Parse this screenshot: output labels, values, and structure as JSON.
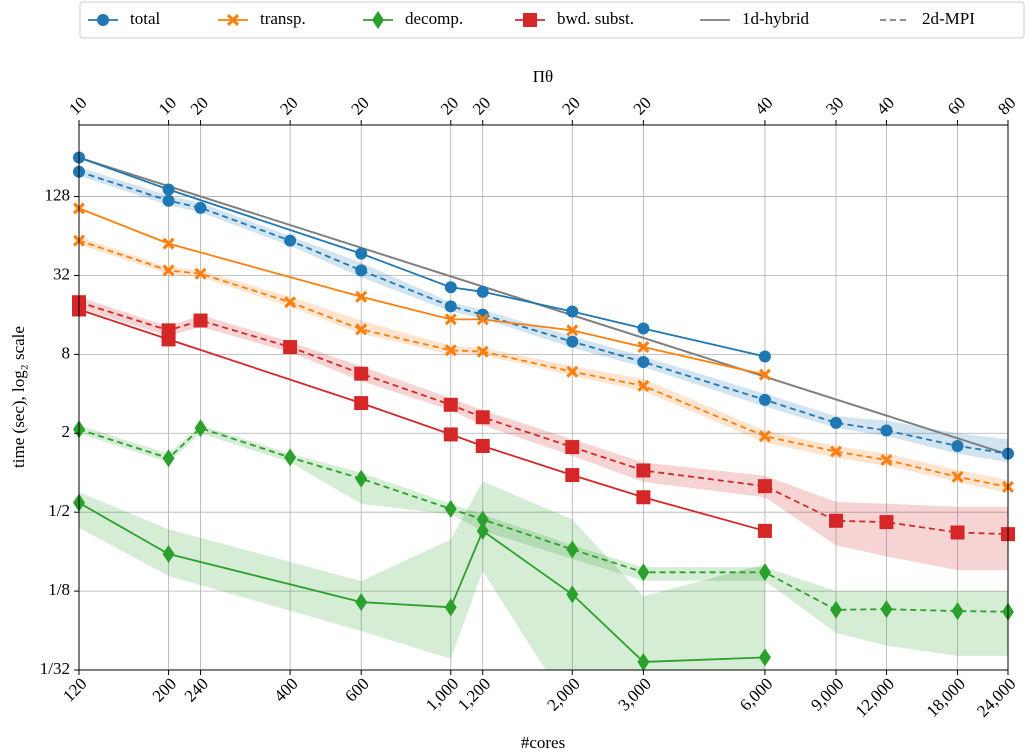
{
  "chart_data": {
    "type": "line",
    "x_label": "#cores",
    "y_label": "time (sec), log₂ scale",
    "top_label": "Πθ",
    "log_x": true,
    "log_y": true,
    "grid": true,
    "xlim": [
      120,
      24000
    ],
    "ylim": [
      0.03125,
      450
    ],
    "xticks": [
      120,
      200,
      240,
      400,
      600,
      {
        "value": 1000,
        "label": "1,000"
      },
      {
        "value": 1200,
        "label": "1,200"
      },
      {
        "value": 2000,
        "label": "2,000"
      },
      {
        "value": 3000,
        "label": "3,000"
      },
      {
        "value": 6000,
        "label": "6,000"
      },
      {
        "value": 9000,
        "label": "9,000"
      },
      {
        "value": 12000,
        "label": "12,000"
      },
      {
        "value": 18000,
        "label": "18,000"
      },
      {
        "value": 24000,
        "label": "24,000"
      }
    ],
    "top_ticks": [
      {
        "value": 120,
        "label": "10"
      },
      {
        "value": 200,
        "label": "10"
      },
      {
        "value": 240,
        "label": "20"
      },
      {
        "value": 400,
        "label": "20"
      },
      {
        "value": 600,
        "label": "20"
      },
      {
        "value": 1000,
        "label": "20"
      },
      {
        "value": 1200,
        "label": "20"
      },
      {
        "value": 2000,
        "label": "20"
      },
      {
        "value": 3000,
        "label": "20"
      },
      {
        "value": 6000,
        "label": "40"
      },
      {
        "value": 9000,
        "label": "30"
      },
      {
        "value": 12000,
        "label": "40"
      },
      {
        "value": 18000,
        "label": "60"
      },
      {
        "value": 24000,
        "label": "80"
      }
    ],
    "yticks": [
      {
        "value": 0.03125,
        "label": "1/32"
      },
      {
        "value": 0.125,
        "label": "1/8"
      },
      {
        "value": 0.5,
        "label": "1/2"
      },
      2,
      8,
      32,
      128
    ],
    "line_styles": [
      {
        "name": "1d-hybrid",
        "color": "#7f7f7f",
        "dashed": false
      },
      {
        "name": "2d-MPI",
        "color": "#7f7f7f",
        "dashed": true
      }
    ],
    "reference": {
      "color": "#7f7f7f",
      "x": [
        120,
        24000
      ],
      "values": [
        254,
        1.38
      ]
    },
    "series": [
      {
        "name": "total",
        "color": "#1f77b4",
        "marker": "circle",
        "hybrid": {
          "x": [
            120,
            200,
            600,
            1000,
            1200,
            2000,
            3000,
            6000
          ],
          "values": [
            254,
            145,
            47,
            26,
            24,
            17,
            12.6,
            7.7
          ]
        },
        "mpi": {
          "x": [
            120,
            200,
            240,
            400,
            600,
            1000,
            1200,
            2000,
            3000,
            6000,
            9000,
            12000,
            18000,
            24000
          ],
          "values": [
            198,
            119,
            105,
            59,
            35,
            18.6,
            16.1,
            10,
            7.0,
            3.6,
            2.4,
            2.1,
            1.6,
            1.4
          ],
          "lower": [
            185,
            110,
            97,
            54,
            31,
            17,
            15,
            9,
            6.4,
            3.2,
            2.2,
            1.9,
            1.4,
            1.2
          ],
          "upper": [
            215,
            130,
            115,
            64,
            40,
            20,
            17.5,
            11,
            7.7,
            4.0,
            2.7,
            2.5,
            2.0,
            1.8
          ]
        }
      },
      {
        "name": "transp.",
        "color": "#ff7f0e",
        "marker": "x",
        "hybrid": {
          "x": [
            120,
            200,
            600,
            1000,
            1200,
            2000,
            3000,
            6000
          ],
          "values": [
            104,
            56,
            22,
            14.8,
            14.8,
            12.2,
            9.1,
            5.6
          ]
        },
        "mpi": {
          "x": [
            120,
            200,
            240,
            400,
            600,
            1000,
            1200,
            2000,
            3000,
            6000,
            9000,
            12000,
            18000,
            24000
          ],
          "values": [
            59,
            35,
            33,
            20,
            12.4,
            8.6,
            8.4,
            5.9,
            4.6,
            1.9,
            1.45,
            1.25,
            0.93,
            0.78
          ],
          "lower": [
            55,
            33,
            31,
            18.5,
            11.5,
            8,
            7.9,
            5.5,
            4.2,
            1.7,
            1.3,
            1.13,
            0.85,
            0.7
          ],
          "upper": [
            63,
            37,
            35,
            22,
            14.5,
            9.3,
            9,
            6.5,
            5.2,
            2.1,
            1.6,
            1.4,
            1.05,
            0.88
          ]
        }
      },
      {
        "name": "decomp.",
        "color": "#2ca02c",
        "marker": "diamond",
        "hybrid": {
          "x": [
            120,
            200,
            600,
            1000,
            1200,
            2000,
            3000,
            6000
          ],
          "values": [
            0.59,
            0.24,
            0.103,
            0.094,
            0.36,
            0.118,
            0.036,
            0.039
          ],
          "lower": [
            0.38,
            0.163,
            0.062,
            0.038,
            0.178,
            0.015,
            0.015,
            0.015
          ],
          "upper": [
            0.71,
            0.37,
            0.149,
            0.31,
            0.86,
            0.44,
            0.114,
            0.2
          ]
        },
        "mpi": {
          "x": [
            120,
            200,
            240,
            400,
            600,
            1000,
            1200,
            2000,
            3000,
            6000,
            9000,
            12000,
            18000,
            24000
          ],
          "values": [
            2.14,
            1.29,
            2.19,
            1.31,
            0.9,
            0.53,
            0.44,
            0.26,
            0.174,
            0.174,
            0.09,
            0.091,
            0.088,
            0.087
          ],
          "lower": [
            2.0,
            1.2,
            2.0,
            1.2,
            0.58,
            0.48,
            0.36,
            0.22,
            0.15,
            0.15,
            0.06,
            0.048,
            0.04,
            0.04
          ],
          "upper": [
            2.3,
            1.4,
            2.3,
            1.4,
            1.0,
            0.58,
            0.48,
            0.28,
            0.19,
            0.19,
            0.125,
            0.125,
            0.125,
            0.125
          ]
        }
      },
      {
        "name": "bwd. subst.",
        "color": "#d62728",
        "marker": "square",
        "hybrid": {
          "x": [
            120,
            200,
            600,
            1000,
            1200,
            2000,
            3000,
            6000
          ],
          "values": [
            17.6,
            10.4,
            3.4,
            1.96,
            1.6,
            0.96,
            0.65,
            0.36
          ]
        },
        "mpi": {
          "x": [
            120,
            200,
            240,
            400,
            600,
            1000,
            1200,
            2000,
            3000,
            6000,
            9000,
            12000,
            18000,
            24000
          ],
          "values": [
            20,
            12.2,
            14.5,
            9.1,
            5.7,
            3.3,
            2.65,
            1.57,
            1.04,
            0.79,
            0.43,
            0.42,
            0.35,
            0.34
          ],
          "lower": [
            18,
            11,
            13,
            8.3,
            5.0,
            3.0,
            2.3,
            1.35,
            0.85,
            0.65,
            0.28,
            0.23,
            0.18,
            0.18
          ],
          "upper": [
            22,
            13,
            16,
            10,
            6.5,
            3.7,
            3.0,
            1.8,
            1.2,
            0.95,
            0.6,
            0.58,
            0.55,
            0.55
          ]
        }
      }
    ]
  }
}
